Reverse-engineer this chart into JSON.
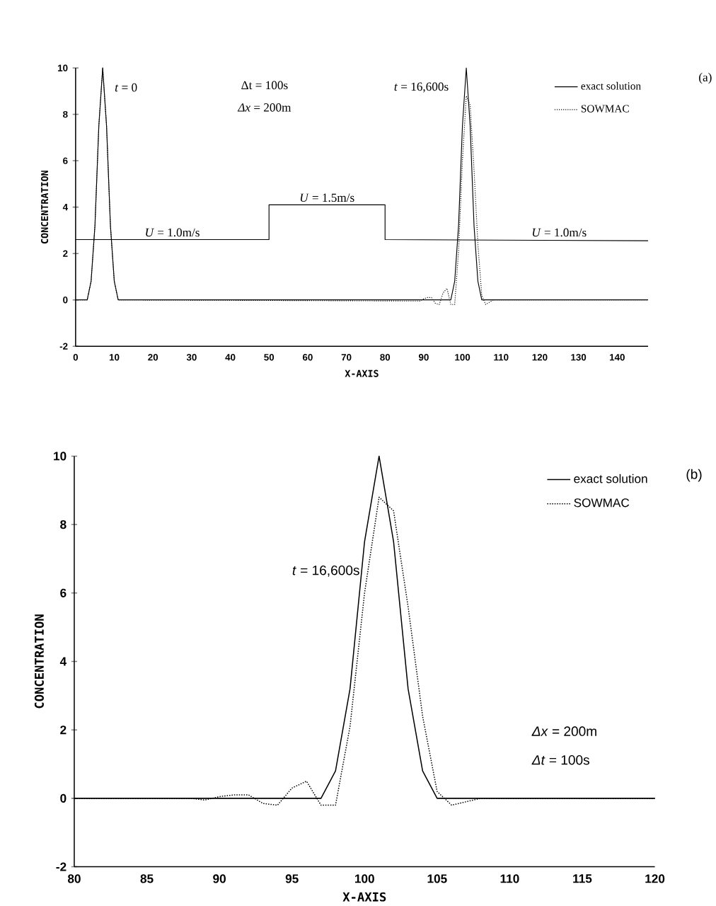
{
  "chart_data": [
    {
      "type": "line",
      "xlabel": "X-AXIS",
      "ylabel": "CONCENTRATION",
      "xlim": [
        0,
        148
      ],
      "ylim": [
        -2,
        10
      ],
      "xticks": [
        0,
        10,
        20,
        30,
        40,
        50,
        60,
        70,
        80,
        90,
        100,
        110,
        120,
        130,
        140
      ],
      "yticks": [
        -2,
        0,
        2,
        4,
        6,
        8,
        10
      ],
      "legend": "top right",
      "annotations": [
        "(a)",
        "*t* = 0",
        "Δt = 100s",
        "*Δx* = 200m",
        "*t* = 16,600s",
        {
          "text": "*U* = 1.0m/s",
          "x": 25,
          "y": 2.6
        },
        {
          "text": "*U* = 1.5m/s",
          "x": 65,
          "y": 4.1
        },
        {
          "text": "*U* = 1.0m/s",
          "x": 125,
          "y": 2.6
        }
      ],
      "series": [
        {
          "name": "exact solution",
          "color": "#000000",
          "line_style": "solid",
          "x": [
            0,
            3,
            4,
            5,
            6,
            7,
            8,
            9,
            10,
            11,
            97,
            98,
            99,
            100,
            101,
            102,
            103,
            104,
            105,
            148
          ],
          "values": [
            0,
            0,
            0.8,
            3.2,
            7.5,
            10,
            7.5,
            3.2,
            0.8,
            0,
            0,
            0.8,
            3.2,
            7.5,
            10,
            7.5,
            3.2,
            0.8,
            0,
            0
          ]
        },
        {
          "name": "SOWMAC",
          "color": "#000000",
          "line_style": "dotted",
          "x": [
            0,
            3,
            4,
            5,
            6,
            7,
            8,
            9,
            10,
            11,
            89,
            90,
            91,
            92,
            93,
            94,
            95,
            96,
            97,
            98,
            99,
            100,
            101,
            102,
            103,
            104,
            105,
            106,
            107,
            108,
            148
          ],
          "values": [
            0,
            0,
            0.8,
            3.2,
            7.5,
            10,
            7.5,
            3.2,
            0.8,
            0,
            -0.05,
            0.05,
            0.1,
            0.1,
            -0.15,
            -0.2,
            0.3,
            0.5,
            -0.2,
            -0.2,
            2.1,
            6.0,
            8.8,
            8.4,
            5.6,
            2.4,
            0.2,
            -0.2,
            -0.1,
            0,
            0
          ]
        },
        {
          "color": "#000000",
          "line_style": "solid",
          "x": [
            0,
            50,
            50,
            80,
            80,
            148
          ],
          "values": [
            2.6,
            2.6,
            4.1,
            4.1,
            2.6,
            2.55
          ]
        }
      ]
    },
    {
      "type": "line",
      "xlabel": "X-AXIS",
      "ylabel": "CONCENTRATION",
      "xlim": [
        80,
        120
      ],
      "ylim": [
        -2,
        10
      ],
      "xticks": [
        80,
        85,
        90,
        95,
        100,
        105,
        110,
        115,
        120
      ],
      "yticks": [
        -2,
        0,
        2,
        4,
        6,
        8,
        10
      ],
      "legend": "top right",
      "annotations": [
        "(b)",
        "*t* = 16,600s",
        "*Δx* = 200m",
        "*Δt* = 100s"
      ],
      "series": [
        {
          "name": "exact solution",
          "color": "#000000",
          "line_style": "solid",
          "x": [
            80,
            97,
            98,
            99,
            100,
            101,
            102,
            103,
            104,
            105,
            120
          ],
          "values": [
            0,
            0,
            0.8,
            3.2,
            7.5,
            10,
            7.5,
            3.2,
            0.8,
            0,
            0
          ]
        },
        {
          "name": "SOWMAC",
          "color": "#000000",
          "line_style": "dotted",
          "x": [
            80,
            81,
            82,
            83,
            84,
            85,
            86,
            87,
            88,
            89,
            90,
            91,
            92,
            93,
            94,
            95,
            96,
            97,
            98,
            99,
            100,
            101,
            102,
            103,
            104,
            105,
            106,
            107,
            108,
            109,
            110,
            111,
            112,
            113,
            114,
            115,
            116,
            117,
            118,
            119,
            120
          ],
          "values": [
            0,
            0,
            0,
            0,
            0,
            0,
            0,
            0,
            0,
            -0.05,
            0.05,
            0.1,
            0.1,
            -0.15,
            -0.2,
            0.3,
            0.5,
            -0.2,
            -0.2,
            2.1,
            6.0,
            8.8,
            8.4,
            5.6,
            2.4,
            0.2,
            -0.2,
            -0.1,
            0,
            0,
            0,
            0,
            0,
            0,
            0,
            0,
            0,
            0,
            0,
            0,
            0
          ]
        }
      ]
    }
  ]
}
